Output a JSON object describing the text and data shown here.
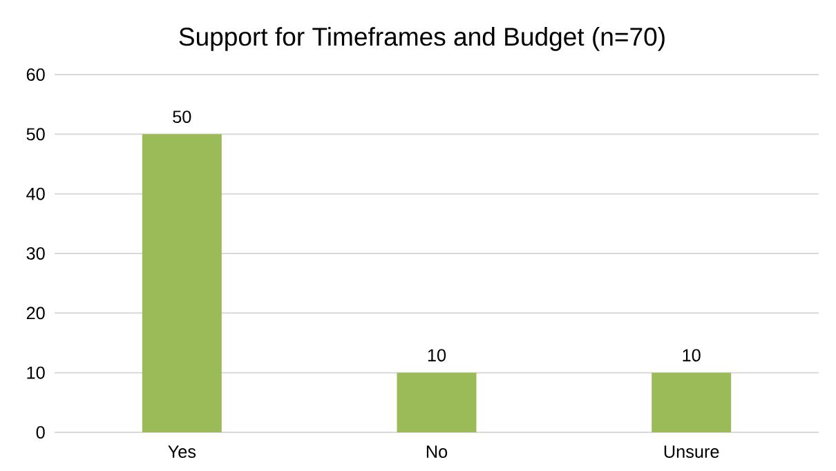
{
  "chart_data": {
    "type": "bar",
    "title": "Support for Timeframes and Budget (n=70)",
    "categories": [
      "Yes",
      "No",
      "Unsure"
    ],
    "values": [
      50,
      10,
      10
    ],
    "color": "#9bbb59",
    "ylim": [
      0,
      60
    ],
    "yticks": [
      0,
      10,
      20,
      30,
      40,
      50,
      60
    ],
    "grid": "y",
    "data_labels": true
  }
}
